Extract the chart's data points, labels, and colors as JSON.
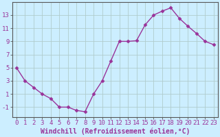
{
  "x": [
    0,
    1,
    2,
    3,
    4,
    5,
    6,
    7,
    8,
    9,
    10,
    11,
    12,
    13,
    14,
    15,
    16,
    17,
    18,
    19,
    20,
    21,
    22,
    23
  ],
  "y": [
    5,
    3,
    2,
    1,
    0.3,
    -1,
    -1,
    -1.5,
    -1.7,
    1,
    3,
    6,
    9,
    9,
    9.1,
    11.5,
    13,
    13.6,
    14.1,
    12.5,
    11.3,
    10.2,
    9,
    8.5
  ],
  "line_color": "#993399",
  "marker": "D",
  "marker_size": 2.5,
  "bg_color": "#cceeff",
  "grid_color": "#b0cccc",
  "xlabel": "Windchill (Refroidissement éolien,°C)",
  "xlabel_color": "#993399",
  "ylabel_ticks": [
    -1,
    1,
    3,
    5,
    7,
    9,
    11,
    13
  ],
  "ylim": [
    -2.5,
    15.0
  ],
  "xlim": [
    -0.5,
    23.5
  ],
  "xtick_labels": [
    "0",
    "1",
    "2",
    "3",
    "4",
    "5",
    "6",
    "7",
    "8",
    "9",
    "10",
    "11",
    "12",
    "13",
    "14",
    "15",
    "16",
    "17",
    "18",
    "19",
    "20",
    "21",
    "22",
    "23"
  ],
  "spine_color": "#555555",
  "tick_color": "#993399",
  "font_size": 6.5,
  "xlabel_fontsize": 7.0
}
